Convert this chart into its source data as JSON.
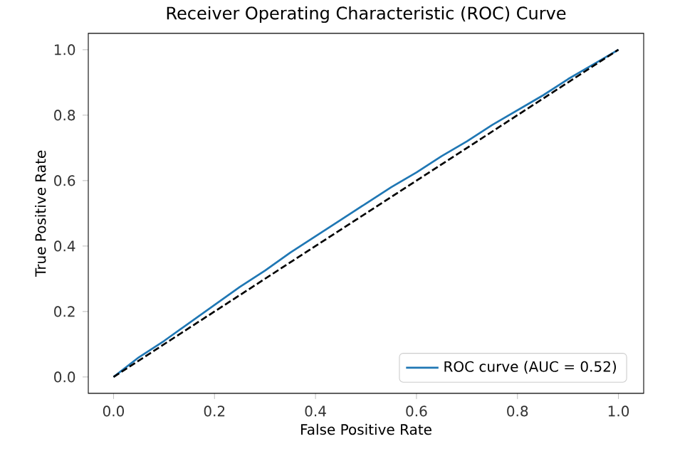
{
  "chart_data": {
    "type": "line",
    "title": "Receiver Operating Characteristic (ROC) Curve",
    "xlabel": "False Positive Rate",
    "ylabel": "True Positive Rate",
    "xlim": [
      -0.05,
      1.05
    ],
    "ylim": [
      -0.05,
      1.05
    ],
    "xticks": [
      {
        "value": 0,
        "label": "0.0"
      },
      0.2,
      0.4,
      0.6,
      0.8,
      {
        "value": 1,
        "label": "1.0"
      }
    ],
    "yticks": [
      {
        "value": 0,
        "label": "0.0"
      },
      0.2,
      0.4,
      0.6,
      0.8,
      {
        "value": 1,
        "label": "1.0"
      }
    ],
    "legend": "bottom right",
    "grid": false,
    "series": [
      {
        "name": "ROC curve (AUC = 0.52)",
        "color": "#1f77b4",
        "line_style": "solid",
        "x": [
          0,
          0.05,
          0.1,
          0.15,
          0.2,
          0.25,
          0.3,
          0.35,
          0.4,
          0.45,
          0.5,
          0.55,
          0.6,
          0.65,
          0.7,
          0.75,
          0.8,
          0.85,
          0.9,
          0.95,
          1.0
        ],
        "values": [
          0,
          0.06,
          0.11,
          0.165,
          0.22,
          0.275,
          0.325,
          0.38,
          0.43,
          0.48,
          0.53,
          0.58,
          0.625,
          0.675,
          0.72,
          0.77,
          0.815,
          0.86,
          0.91,
          0.955,
          1.0
        ]
      },
      {
        "color": "#000000",
        "line_style": "dashed",
        "x": [
          0,
          1
        ],
        "values": [
          0,
          1
        ]
      }
    ]
  }
}
